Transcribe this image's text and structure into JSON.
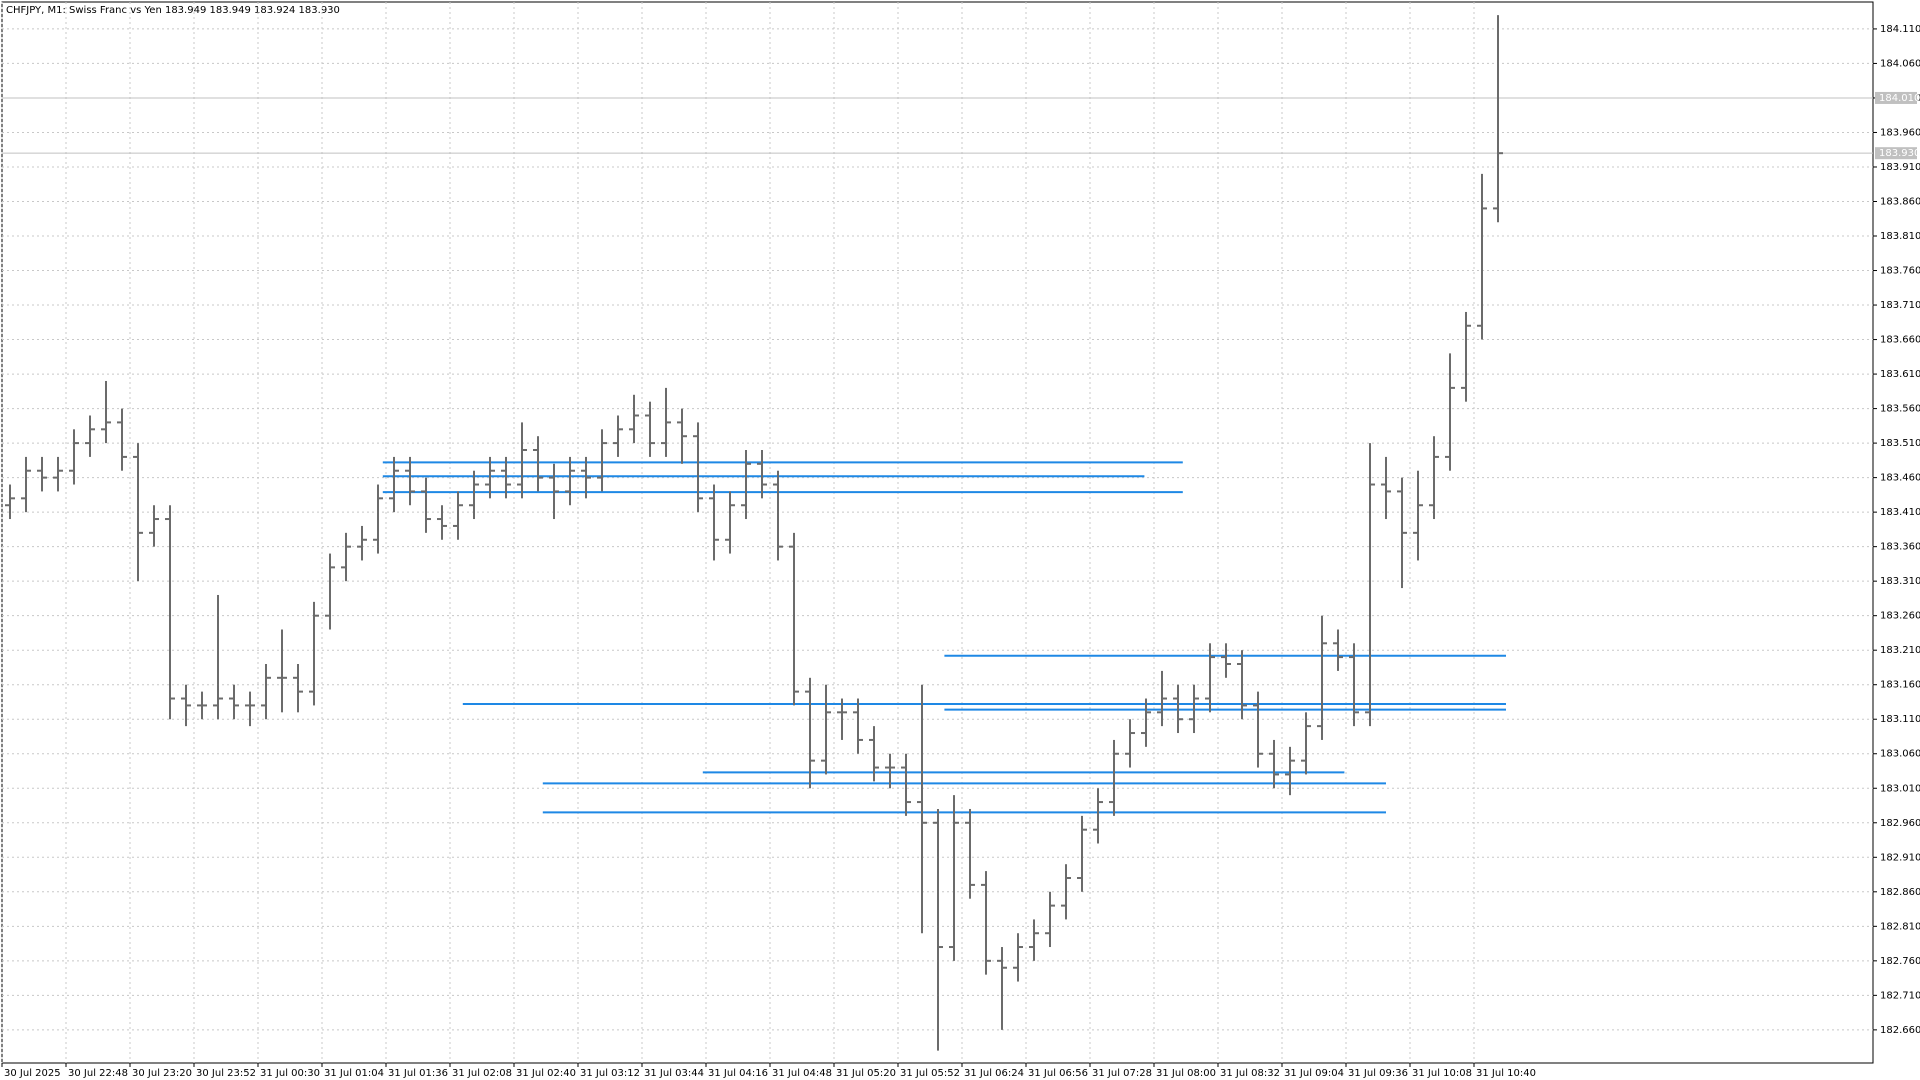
{
  "chart_data": {
    "type": "ohlc",
    "title": "CHFJPY, M1:  Swiss Franc vs Yen  183.949 183.949 183.924 183.930",
    "color": "#6b6b6b",
    "grid": true,
    "categories": [
      "30 Jul 2025",
      null,
      null,
      null,
      "30 Jul 22:48",
      null,
      null,
      null,
      "30 Jul 23:20",
      null,
      null,
      null,
      "30 Jul 23:52",
      null,
      null,
      null,
      "31 Jul 00:30",
      null,
      null,
      null,
      "31 Jul 01:04",
      null,
      null,
      null,
      "31 Jul 01:36",
      null,
      null,
      null,
      "31 Jul 02:08",
      null,
      null,
      null,
      "31 Jul 02:40",
      null,
      null,
      null,
      "31 Jul 03:12",
      null,
      null,
      null,
      "31 Jul 03:44",
      null,
      null,
      null,
      "31 Jul 04:16",
      null,
      null,
      null,
      "31 Jul 04:48",
      null,
      null,
      null,
      "31 Jul 05:20",
      null,
      null,
      null,
      "31 Jul 05:52",
      null,
      null,
      null,
      "31 Jul 06:24",
      null,
      null,
      null,
      "31 Jul 06:56",
      null,
      null,
      null,
      "31 Jul 07:28",
      null,
      null,
      null,
      "31 Jul 08:00",
      null,
      null,
      null,
      "31 Jul 08:32",
      null,
      null,
      null,
      "31 Jul 09:04",
      null,
      null,
      null,
      "31 Jul 09:36",
      null,
      null,
      null,
      "31 Jul 10:08",
      null,
      null,
      null,
      "31 Jul 10:40",
      null
    ],
    "open": [
      183.42,
      183.43,
      183.47,
      183.46,
      183.47,
      183.51,
      183.53,
      183.54,
      183.49,
      183.38,
      183.4,
      183.14,
      183.13,
      183.13,
      183.14,
      183.13,
      183.13,
      183.17,
      183.17,
      183.15,
      183.26,
      183.33,
      183.36,
      183.37,
      183.43,
      183.47,
      183.44,
      183.4,
      183.39,
      183.42,
      183.45,
      183.47,
      183.45,
      183.5,
      183.46,
      183.44,
      183.47,
      183.46,
      183.51,
      183.53,
      183.55,
      183.51,
      183.54,
      183.52,
      183.43,
      183.37,
      183.42,
      183.48,
      183.45,
      183.36,
      183.15,
      183.05,
      183.12,
      183.12,
      183.08,
      183.04,
      183.04,
      182.99,
      182.96,
      182.78,
      182.96,
      182.87,
      182.76,
      182.75,
      182.78,
      182.8,
      182.84,
      182.88,
      182.95,
      182.99,
      183.06,
      183.09,
      183.12,
      183.14,
      183.11,
      183.14,
      183.2,
      183.19,
      183.13,
      183.06,
      183.03,
      183.05,
      183.1,
      183.22,
      183.2,
      183.12,
      183.45,
      183.44,
      183.38,
      183.42,
      183.49,
      183.59,
      183.68,
      183.85
    ],
    "high": [
      183.45,
      183.49,
      183.49,
      183.49,
      183.53,
      183.55,
      183.6,
      183.56,
      183.51,
      183.42,
      183.42,
      183.16,
      183.15,
      183.29,
      183.16,
      183.15,
      183.19,
      183.24,
      183.19,
      183.28,
      183.35,
      183.38,
      183.39,
      183.45,
      183.49,
      183.49,
      183.46,
      183.42,
      183.44,
      183.47,
      183.49,
      183.49,
      183.54,
      183.52,
      183.48,
      183.49,
      183.49,
      183.53,
      183.55,
      183.58,
      183.57,
      183.59,
      183.56,
      183.54,
      183.45,
      183.44,
      183.5,
      183.5,
      183.47,
      183.38,
      183.17,
      183.16,
      183.14,
      183.14,
      183.1,
      183.06,
      183.06,
      183.16,
      182.98,
      183.0,
      182.98,
      182.89,
      182.78,
      182.8,
      182.82,
      182.86,
      182.9,
      182.97,
      183.01,
      183.08,
      183.11,
      183.14,
      183.18,
      183.16,
      183.16,
      183.22,
      183.22,
      183.21,
      183.15,
      183.08,
      183.07,
      183.12,
      183.26,
      183.24,
      183.22,
      183.51,
      183.49,
      183.46,
      183.47,
      183.52,
      183.64,
      183.7,
      183.9,
      184.13
    ],
    "low": [
      183.4,
      183.41,
      183.44,
      183.44,
      183.45,
      183.49,
      183.51,
      183.47,
      183.31,
      183.36,
      183.11,
      183.1,
      183.11,
      183.11,
      183.11,
      183.1,
      183.11,
      183.12,
      183.12,
      183.13,
      183.24,
      183.31,
      183.34,
      183.35,
      183.41,
      183.42,
      183.38,
      183.37,
      183.37,
      183.4,
      183.43,
      183.43,
      183.43,
      183.44,
      183.4,
      183.42,
      183.43,
      183.44,
      183.49,
      183.51,
      183.49,
      183.49,
      183.48,
      183.41,
      183.34,
      183.35,
      183.4,
      183.43,
      183.34,
      183.13,
      183.01,
      183.03,
      183.08,
      183.06,
      183.02,
      183.01,
      182.97,
      182.8,
      182.63,
      182.76,
      182.85,
      182.74,
      182.66,
      182.73,
      182.76,
      182.78,
      182.82,
      182.86,
      182.93,
      182.97,
      183.04,
      183.07,
      183.1,
      183.09,
      183.09,
      183.12,
      183.17,
      183.11,
      183.04,
      183.01,
      183.0,
      183.03,
      183.08,
      183.18,
      183.1,
      183.1,
      183.4,
      183.3,
      183.34,
      183.4,
      183.47,
      183.57,
      183.66,
      183.83
    ],
    "close": [
      183.43,
      183.47,
      183.46,
      183.47,
      183.51,
      183.53,
      183.54,
      183.49,
      183.38,
      183.4,
      183.14,
      183.13,
      183.13,
      183.14,
      183.13,
      183.13,
      183.17,
      183.17,
      183.15,
      183.26,
      183.33,
      183.36,
      183.37,
      183.43,
      183.47,
      183.44,
      183.4,
      183.39,
      183.42,
      183.45,
      183.47,
      183.45,
      183.5,
      183.46,
      183.44,
      183.47,
      183.46,
      183.51,
      183.53,
      183.55,
      183.51,
      183.54,
      183.52,
      183.43,
      183.37,
      183.42,
      183.48,
      183.45,
      183.36,
      183.15,
      183.05,
      183.12,
      183.12,
      183.08,
      183.04,
      183.04,
      182.99,
      182.96,
      182.78,
      182.96,
      182.87,
      182.76,
      182.75,
      182.78,
      182.8,
      182.84,
      182.88,
      182.95,
      182.99,
      183.06,
      183.09,
      183.12,
      183.14,
      183.11,
      183.14,
      183.2,
      183.19,
      183.13,
      183.06,
      183.03,
      183.05,
      183.1,
      183.22,
      183.2,
      183.12,
      183.45,
      183.44,
      183.38,
      183.42,
      183.49,
      183.59,
      183.68,
      183.85,
      183.93
    ],
    "ylim": [
      182.612,
      184.149
    ],
    "yticks": [
      {
        "value": 182.66,
        "label": "182.660"
      },
      {
        "value": 182.71,
        "label": "182.710"
      },
      {
        "value": 182.76,
        "label": "182.760"
      },
      {
        "value": 182.81,
        "label": "182.810"
      },
      {
        "value": 182.86,
        "label": "182.860"
      },
      {
        "value": 182.91,
        "label": "182.910"
      },
      {
        "value": 182.96,
        "label": "182.960"
      },
      {
        "value": 183.01,
        "label": "183.010"
      },
      {
        "value": 183.06,
        "label": "183.060"
      },
      {
        "value": 183.11,
        "label": "183.110"
      },
      {
        "value": 183.16,
        "label": "183.160"
      },
      {
        "value": 183.21,
        "label": "183.210"
      },
      {
        "value": 183.26,
        "label": "183.260"
      },
      {
        "value": 183.31,
        "label": "183.310"
      },
      {
        "value": 183.36,
        "label": "183.360"
      },
      {
        "value": 183.41,
        "label": "183.410"
      },
      {
        "value": 183.46,
        "label": "183.460"
      },
      {
        "value": 183.51,
        "label": "183.510"
      },
      {
        "value": 183.56,
        "label": "183.560"
      },
      {
        "value": 183.61,
        "label": "183.610"
      },
      {
        "value": 183.66,
        "label": "183.660"
      },
      {
        "value": 183.71,
        "label": "183.710"
      },
      {
        "value": 183.76,
        "label": "183.760"
      },
      {
        "value": 183.81,
        "label": "183.810"
      },
      {
        "value": 183.86,
        "label": "183.860"
      },
      {
        "value": 183.91,
        "label": "183.910"
      },
      {
        "value": 183.96,
        "label": "183.960"
      },
      {
        "value": 184.01,
        "label": "184.010"
      },
      {
        "value": 184.06,
        "label": "184.060"
      },
      {
        "value": 184.11,
        "label": "184.110"
      }
    ],
    "price_lines": [
      {
        "value": 184.01,
        "label": "184.010",
        "color": "#c0c0c0"
      },
      {
        "value": 183.93,
        "label": "183.930",
        "color": "#c0c0c0"
      }
    ],
    "levels": {
      "color": "#1e88e5",
      "lines": [
        {
          "value": 183.482,
          "from": 23.8,
          "to": 73.8
        },
        {
          "value": 183.462,
          "from": 23.8,
          "to": 71.4
        },
        {
          "value": 183.439,
          "from": 23.8,
          "to": 73.8
        },
        {
          "value": 183.202,
          "from": 58.9,
          "to": 94
        },
        {
          "value": 183.132,
          "from": 28.8,
          "to": 94
        },
        {
          "value": 183.124,
          "from": 58.9,
          "to": 94
        },
        {
          "value": 183.033,
          "from": 43.8,
          "to": 83.9
        },
        {
          "value": 183.017,
          "from": 33.8,
          "to": 86.5
        },
        {
          "value": 182.975,
          "from": 33.8,
          "to": 86.5
        }
      ]
    }
  }
}
